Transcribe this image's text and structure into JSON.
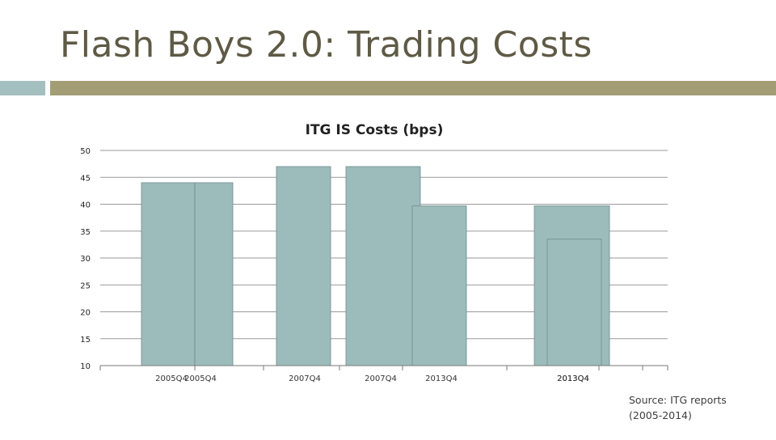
{
  "slide": {
    "title": "Flash Boys 2.0: Trading Costs",
    "source": "Source: ITG reports (2005-2014)"
  },
  "colors": {
    "bar": "#9cbcbb",
    "bar_edge": "#6f8b8b",
    "title_text": "#5e5a45",
    "accent_left": "#a4bfc0",
    "accent_right": "#a29d74",
    "grid": "#9a9a9a"
  },
  "chart_data": {
    "type": "bar",
    "title": "ITG IS Costs (bps)",
    "xlabel": "",
    "ylabel": "",
    "ylim": [
      10,
      50
    ],
    "yticks": [
      10,
      15,
      20,
      25,
      30,
      35,
      40,
      45,
      50
    ],
    "grid": true,
    "legend": "none",
    "categories": [
      "2005Q4",
      "2005Q4",
      "2007Q4",
      "2007Q4",
      "2013Q4",
      "2013Q4",
      "2013Q4"
    ],
    "values": [
      44,
      44,
      47,
      47,
      39.7,
      39.7,
      33.5
    ]
  }
}
